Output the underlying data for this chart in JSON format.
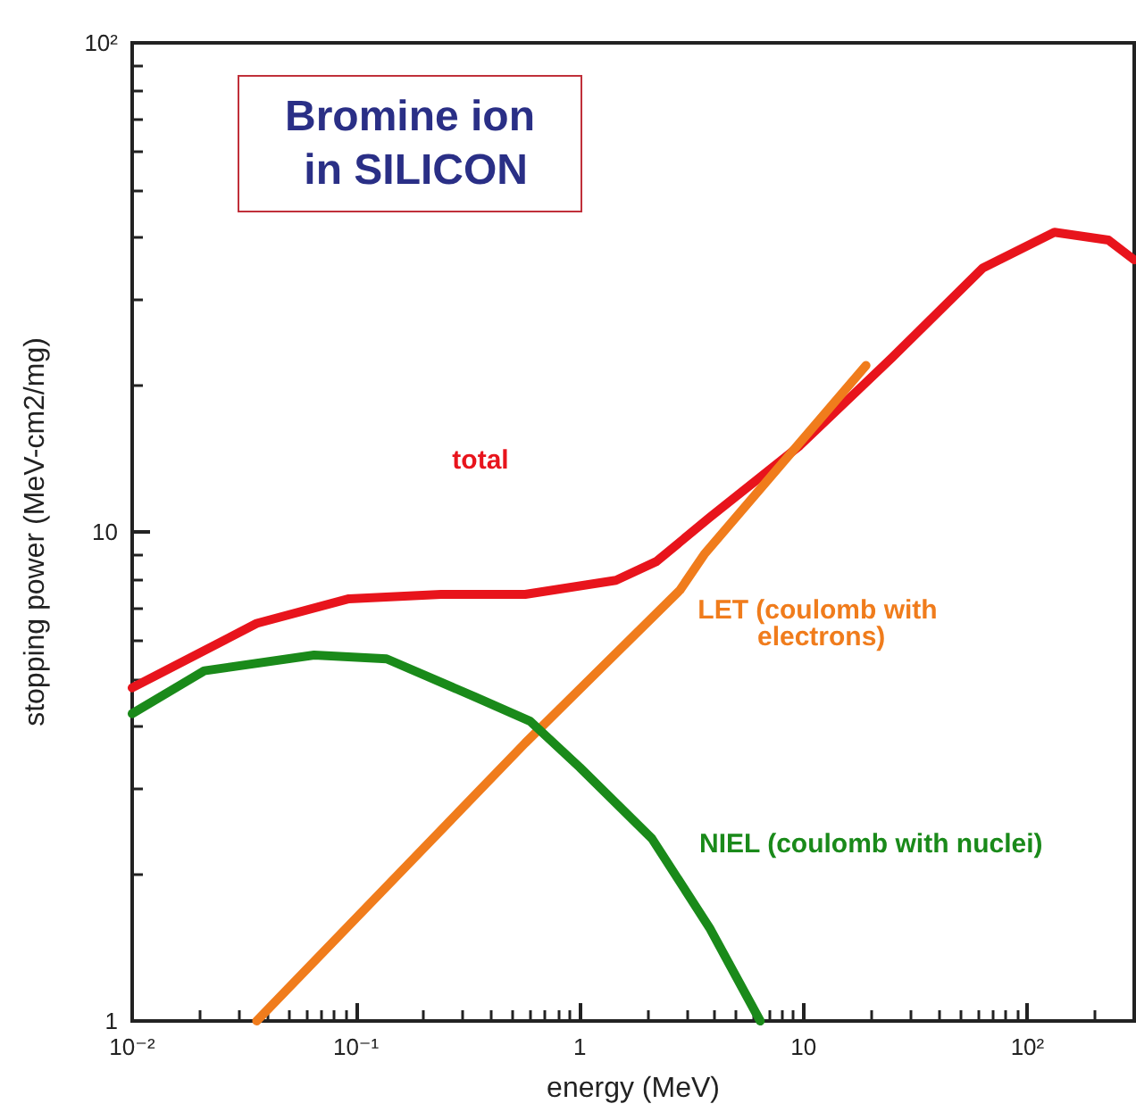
{
  "chart_data": {
    "type": "line",
    "xlabel": "energy (MeV)",
    "ylabel": "stopping power (MeV-cm2/mg)",
    "log": "xy",
    "grid": false,
    "legend": false,
    "marker": "none",
    "line_style": "solid",
    "xlim": [
      0.01,
      300
    ],
    "ylim": [
      1,
      100
    ],
    "xticks": [
      {
        "value": 0.01,
        "label": "10⁻²"
      },
      {
        "value": 0.1,
        "label": "10⁻¹"
      },
      1,
      10,
      {
        "value": 100,
        "label": "10²"
      }
    ],
    "yticks": [
      1,
      10,
      {
        "value": 100,
        "label": "10²"
      }
    ],
    "annotations": [
      "Bromine ion\n in SILICON"
    ],
    "series": [
      {
        "name": "total",
        "color": "#e8141c",
        "x": [
          0.01,
          0.036,
          0.093,
          0.24,
          0.57,
          1.45,
          2.2,
          3.8,
          9.6,
          24.8,
          63,
          132,
          230,
          300
        ],
        "values": [
          4.8,
          6.5,
          7.3,
          7.45,
          7.45,
          7.96,
          8.7,
          10.7,
          15,
          22.7,
          34.6,
          41,
          39.5,
          36
        ]
      },
      {
        "name": "LET (coulomb with electrons)",
        "color": "#f07c1c",
        "x": [
          0.036,
          0.57,
          2.8,
          3.6,
          19
        ],
        "values": [
          1,
          3.7,
          7.6,
          9.0,
          21.9
        ]
      },
      {
        "name": "NIEL (coulomb with nuclei)",
        "color": "#1a8a1a",
        "x": [
          0.01,
          0.021,
          0.065,
          0.137,
          0.34,
          0.6,
          1.0,
          2.1,
          3.8,
          6.4
        ],
        "values": [
          4.25,
          5.2,
          5.6,
          5.5,
          4.6,
          4.1,
          3.3,
          2.36,
          1.55,
          1
        ]
      }
    ]
  }
}
